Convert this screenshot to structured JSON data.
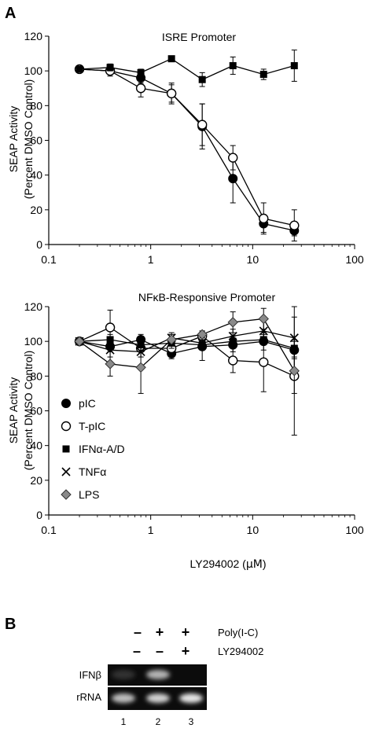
{
  "panel_a_label": "A",
  "panel_b_label": "B",
  "chart_data": [
    {
      "type": "line",
      "title": "ISRE Promoter",
      "ylabel_line1": "SEAP Activity",
      "ylabel_line2": "(Percent DMSO Control)",
      "xlabel": "",
      "xscale": "log",
      "xlim": [
        0.1,
        100
      ],
      "ylim": [
        0,
        120
      ],
      "xticks": [
        "0.1",
        "1",
        "10",
        "100"
      ],
      "yticks": [
        "0",
        "20",
        "40",
        "60",
        "80",
        "100",
        "120"
      ],
      "grid": false,
      "series": [
        {
          "name": "pIC",
          "marker": "filled-circle",
          "points": [
            [
              0.2,
              101,
              0
            ],
            [
              0.4,
              100,
              2
            ],
            [
              0.8,
              96,
              3
            ],
            [
              1.6,
              87,
              5
            ],
            [
              3.2,
              68,
              13
            ],
            [
              6.4,
              38,
              14
            ],
            [
              12.8,
              12,
              5
            ],
            [
              25.6,
              8,
              3
            ]
          ]
        },
        {
          "name": "T-pIC",
          "marker": "open-circle",
          "points": [
            [
              0.2,
              101,
              0
            ],
            [
              0.4,
              100,
              3
            ],
            [
              0.8,
              90,
              5
            ],
            [
              1.6,
              87,
              6
            ],
            [
              3.2,
              69,
              12
            ],
            [
              6.4,
              50,
              7
            ],
            [
              12.8,
              15,
              9
            ],
            [
              25.6,
              11,
              9
            ]
          ]
        },
        {
          "name": "IFNα-A/D",
          "marker": "filled-square",
          "points": [
            [
              0.2,
              101,
              0
            ],
            [
              0.4,
              102,
              2
            ],
            [
              0.8,
              99,
              2
            ],
            [
              1.6,
              107,
              0
            ],
            [
              3.2,
              95,
              4
            ],
            [
              6.4,
              103,
              5
            ],
            [
              12.8,
              98,
              3
            ],
            [
              25.6,
              103,
              9
            ]
          ]
        }
      ]
    },
    {
      "type": "line",
      "title": "NFκB-Responsive Promoter",
      "ylabel_line1": "SEAP Activity",
      "ylabel_line2": "(Percent DMSO Control)",
      "xlabel_prefix": "LY294002 (",
      "xlabel_unit": "μM",
      "xlabel_suffix": ")",
      "xscale": "log",
      "xlim": [
        0.1,
        100
      ],
      "ylim": [
        0,
        120
      ],
      "xticks": [
        "0.1",
        "1",
        "10",
        "100"
      ],
      "yticks": [
        "0",
        "20",
        "40",
        "60",
        "80",
        "100",
        "120"
      ],
      "grid": false,
      "legend_position": "lower-left",
      "series": [
        {
          "name": "pIC",
          "marker": "filled-circle",
          "points": [
            [
              0.2,
              100,
              0
            ],
            [
              0.4,
              97,
              3
            ],
            [
              0.8,
              101,
              3
            ],
            [
              1.6,
              93,
              3
            ],
            [
              3.2,
              97,
              8
            ],
            [
              6.4,
              98,
              4
            ],
            [
              12.8,
              100,
              5
            ],
            [
              25.6,
              95,
              5
            ]
          ]
        },
        {
          "name": "T-pIC",
          "marker": "open-circle",
          "points": [
            [
              0.2,
              100,
              0
            ],
            [
              0.4,
              108,
              10
            ],
            [
              0.8,
              96,
              5
            ],
            [
              1.6,
              96,
              5
            ],
            [
              3.2,
              103,
              3
            ],
            [
              6.4,
              89,
              7
            ],
            [
              12.8,
              88,
              17
            ],
            [
              25.6,
              80,
              34
            ]
          ]
        },
        {
          "name": "IFNα-A/D",
          "marker": "filled-square",
          "points": [
            [
              0.2,
              100,
              0
            ],
            [
              0.4,
              101,
              3
            ],
            [
              0.8,
              98,
              3
            ],
            [
              1.6,
              99,
              3
            ],
            [
              3.2,
              98,
              3
            ],
            [
              6.4,
              100,
              3
            ],
            [
              12.8,
              101,
              3
            ],
            [
              25.6,
              96,
              5
            ]
          ]
        },
        {
          "name": "TNFα",
          "marker": "cross",
          "points": [
            [
              0.2,
              100,
              0
            ],
            [
              0.4,
              95,
              4
            ],
            [
              0.8,
              94,
              3
            ],
            [
              1.6,
              102,
              3
            ],
            [
              3.2,
              99,
              3
            ],
            [
              6.4,
              103,
              4
            ],
            [
              12.8,
              106,
              6
            ],
            [
              25.6,
              102,
              18
            ]
          ]
        },
        {
          "name": "LPS",
          "marker": "diamond",
          "points": [
            [
              0.2,
              100,
              0
            ],
            [
              0.4,
              87,
              7
            ],
            [
              0.8,
              85,
              15
            ],
            [
              1.6,
              101,
              3
            ],
            [
              3.2,
              104,
              2
            ],
            [
              6.4,
              111,
              6
            ],
            [
              12.8,
              113,
              6
            ],
            [
              25.6,
              83,
              13
            ]
          ]
        }
      ]
    }
  ],
  "gel": {
    "lanes": [
      {
        "number": "1",
        "poly_ic": "–",
        "ly294002": "–"
      },
      {
        "number": "2",
        "poly_ic": "+",
        "ly294002": "–"
      },
      {
        "number": "3",
        "poly_ic": "+",
        "ly294002": "+"
      }
    ],
    "treatment_labels": [
      "Poly(I-C)",
      "LY294002"
    ],
    "row_labels": [
      "IFNβ",
      "rRNA"
    ],
    "band_intensity": {
      "IFNβ": [
        0.05,
        0.7,
        0.0
      ],
      "rRNA": [
        0.75,
        0.85,
        0.95
      ]
    }
  }
}
